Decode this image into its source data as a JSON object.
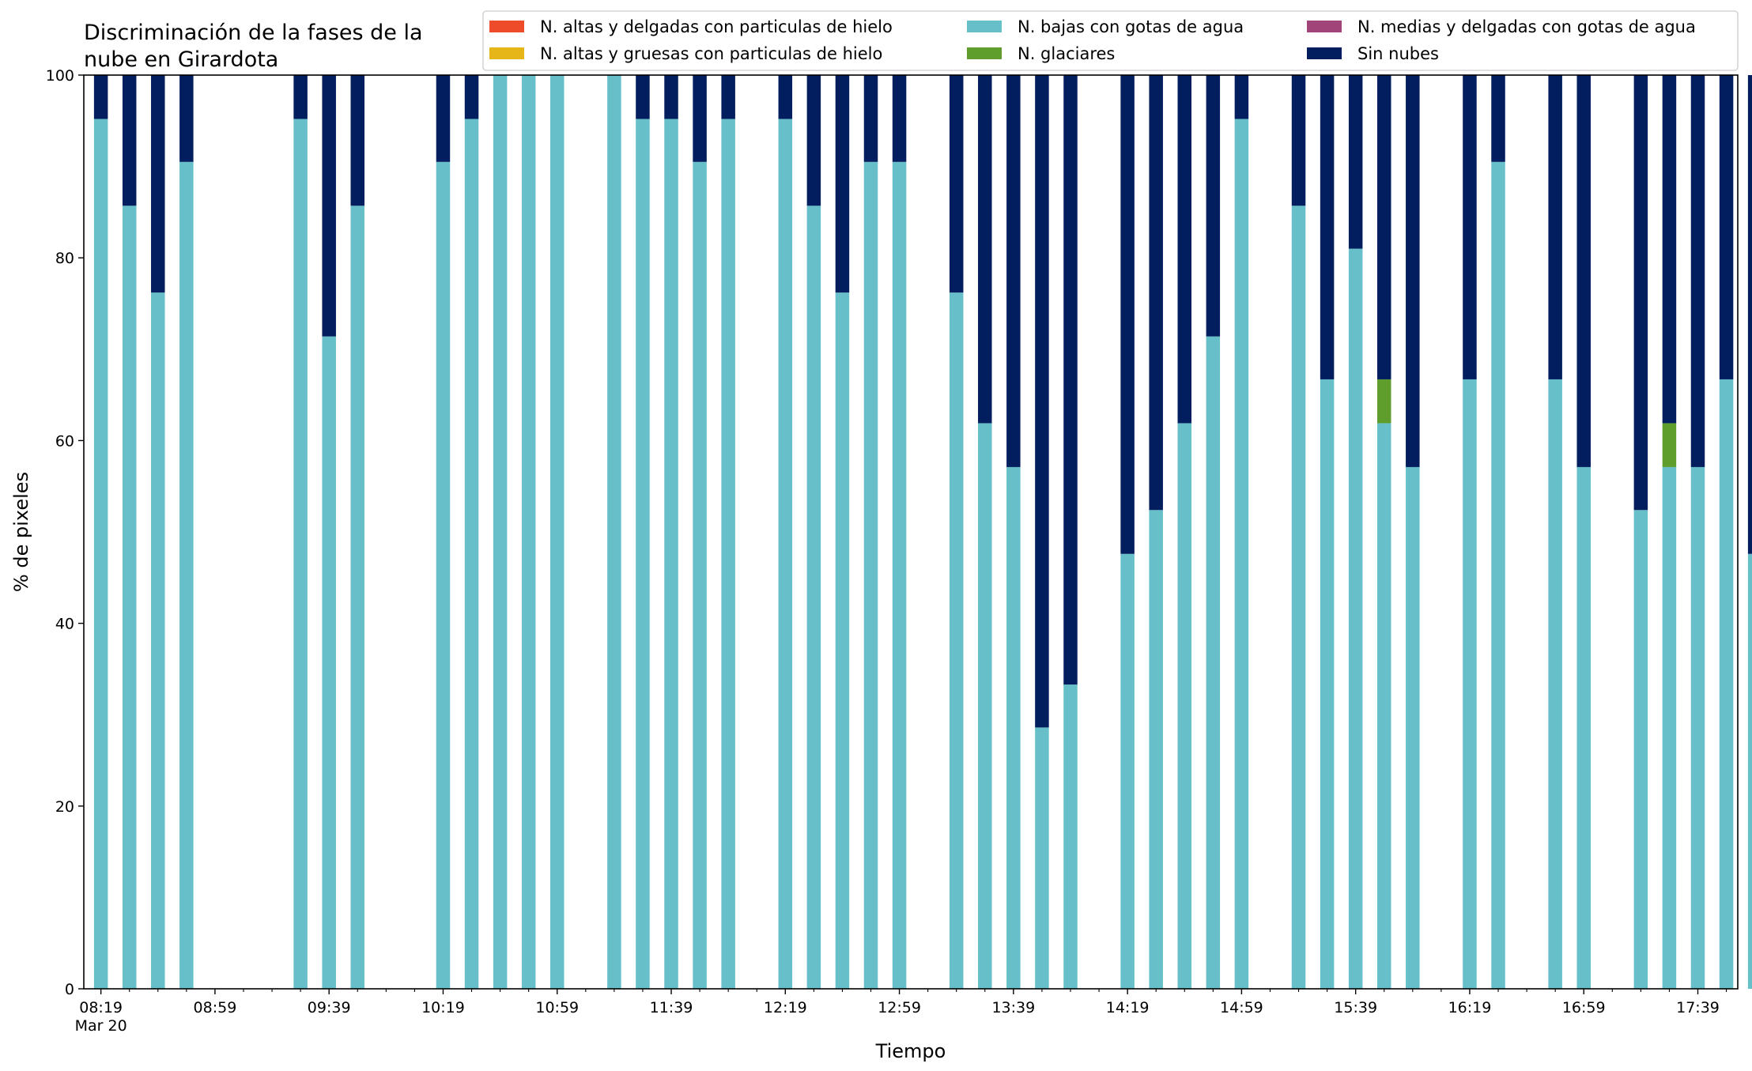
{
  "chart_data": {
    "type": "bar",
    "stacked": true,
    "title_lines": [
      "Discriminación de la fases de la",
      "nube en Girardota"
    ],
    "xlabel": "Tiempo",
    "ylabel": "% de pixeles",
    "ylim": [
      0,
      100
    ],
    "y_ticks": [
      0,
      20,
      40,
      60,
      80,
      100
    ],
    "x_range_minutes": [
      493,
      1073
    ],
    "x_tick_labels": [
      {
        "minute": 499,
        "label": "08:19",
        "sub": "Mar 20"
      },
      {
        "minute": 539,
        "label": "08:59"
      },
      {
        "minute": 579,
        "label": "09:39"
      },
      {
        "minute": 619,
        "label": "10:19"
      },
      {
        "minute": 659,
        "label": "10:59"
      },
      {
        "minute": 699,
        "label": "11:39"
      },
      {
        "minute": 739,
        "label": "12:19"
      },
      {
        "minute": 779,
        "label": "12:59"
      },
      {
        "minute": 819,
        "label": "13:39"
      },
      {
        "minute": 859,
        "label": "14:19"
      },
      {
        "minute": 899,
        "label": "14:59"
      },
      {
        "minute": 939,
        "label": "15:39"
      },
      {
        "minute": 979,
        "label": "16:19"
      },
      {
        "minute": 1019,
        "label": "16:59"
      },
      {
        "minute": 1059,
        "label": "17:39"
      }
    ],
    "minor_tick_step_minutes": 10,
    "grid": false,
    "legend_position": "top-right",
    "legend_ncol": 3,
    "series": [
      {
        "name": "N. altas y delgadas con particulas de hielo",
        "color": "#ee4b2b"
      },
      {
        "name": "N. altas y gruesas con particulas de hielo",
        "color": "#e6b619"
      },
      {
        "name": "N. bajas con gotas de agua",
        "color": "#66bfc9"
      },
      {
        "name": "N. glaciares",
        "color": "#5f9e2d"
      },
      {
        "name": "N. medias y delgadas con gotas de agua",
        "color": "#a0447a"
      },
      {
        "name": "Sin nubes",
        "color": "#031e5e"
      }
    ],
    "time_points": [
      "08:19",
      "08:29",
      "08:39",
      "08:49",
      "09:29",
      "09:39",
      "09:49",
      "10:19",
      "10:29",
      "10:39",
      "10:49",
      "10:59",
      "11:19",
      "11:29",
      "11:39",
      "11:49",
      "11:59",
      "12:19",
      "12:29",
      "12:39",
      "12:49",
      "12:59",
      "13:19",
      "13:29",
      "13:39",
      "13:49",
      "13:59",
      "14:19",
      "14:29",
      "14:39",
      "14:49",
      "14:59",
      "15:19",
      "15:29",
      "15:39",
      "15:49",
      "15:59",
      "16:19",
      "16:29",
      "16:49",
      "16:59",
      "17:19",
      "17:29",
      "17:39",
      "17:49",
      "17:59"
    ],
    "values": {
      "N. bajas con gotas de agua": [
        95.2,
        85.7,
        76.2,
        90.5,
        95.2,
        71.4,
        85.7,
        90.5,
        95.2,
        100,
        100,
        100,
        100,
        95.2,
        95.2,
        90.5,
        95.2,
        95.2,
        85.7,
        76.2,
        90.5,
        90.5,
        76.2,
        61.9,
        57.1,
        28.6,
        33.3,
        47.6,
        52.4,
        61.9,
        71.4,
        95.2,
        85.7,
        66.7,
        81.0,
        61.9,
        57.1,
        66.7,
        90.5,
        66.7,
        57.1,
        52.4,
        57.1,
        57.1,
        66.7,
        47.6
      ],
      "N. glaciares": [
        0,
        0,
        0,
        0,
        0,
        0,
        0,
        0,
        0,
        0,
        0,
        0,
        0,
        0,
        0,
        0,
        0,
        0,
        0,
        0,
        0,
        0,
        0,
        0,
        0,
        0,
        0,
        0,
        0,
        0,
        0,
        0,
        0,
        0,
        0,
        4.8,
        0,
        0,
        0,
        0,
        0,
        0,
        4.8,
        0,
        0,
        0
      ],
      "Sin nubes": [
        4.8,
        14.3,
        23.8,
        9.5,
        4.8,
        28.6,
        14.3,
        9.5,
        4.8,
        0,
        0,
        0,
        0,
        4.8,
        4.8,
        9.5,
        4.8,
        4.8,
        14.3,
        23.8,
        9.5,
        9.5,
        23.8,
        38.1,
        42.9,
        71.4,
        66.7,
        52.4,
        47.6,
        38.1,
        28.6,
        4.8,
        14.3,
        33.3,
        19.0,
        33.3,
        42.9,
        33.3,
        9.5,
        33.3,
        42.9,
        47.6,
        38.1,
        42.9,
        33.3,
        52.4
      ]
    }
  }
}
